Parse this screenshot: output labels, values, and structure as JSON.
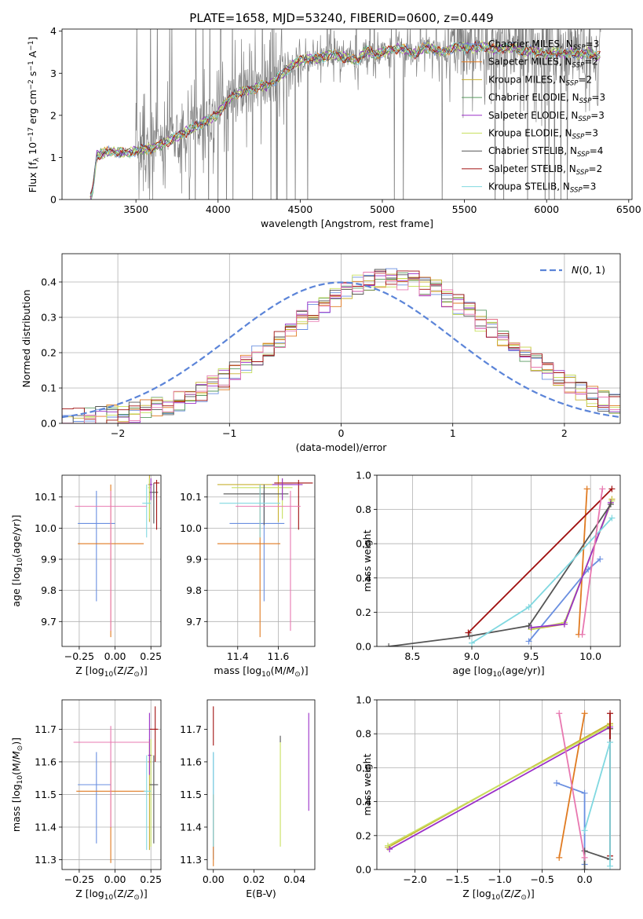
{
  "figure_title": "PLATE=1658, MJD=53240, FIBERID=0600, z=0.449",
  "series_names": [
    "Chabrier MILES, N_SSP=3",
    "Salpeter MILES, N_SSP=2",
    "Kroupa MILES, N_SSP=2",
    "Chabrier ELODIE, N_SSP=3",
    "Salpeter ELODIE, N_SSP=3",
    "Kroupa ELODIE, N_SSP=3",
    "Chabrier STELIB, N_SSP=4",
    "Salpeter STELIB, N_SSP=2",
    "Kroupa STELIB, N_SSP=3"
  ],
  "series_colors": [
    "#6a8fe0",
    "#e07a20",
    "#c8b030",
    "#5a9a60",
    "#9b30c8",
    "#c8e060",
    "#555555",
    "#a01010",
    "#80d8e0"
  ],
  "aux_colors": {
    "data": "#808080",
    "normal": "#5b84d8",
    "pink": "#e878b0"
  },
  "chart_data": [
    {
      "type": "line",
      "id": "spectrum",
      "xlabel": "wavelength [Angstrom, rest frame]",
      "ylabel": "Flux [f_λ 10^-17 erg cm^-2 s^-1 A^-1]",
      "xlim": [
        3050,
        6520
      ],
      "ylim": [
        0,
        4.05
      ],
      "xticks": [
        3500,
        4000,
        4500,
        5000,
        5500,
        6000,
        6500
      ],
      "yticks": [
        0,
        1,
        2,
        3,
        4
      ],
      "legend": "top-right",
      "grid": false,
      "continuum_x": [
        3220,
        3240,
        3260,
        3300,
        3350,
        3400,
        3450,
        3500,
        3550,
        3600,
        3650,
        3700,
        3750,
        3800,
        3850,
        3900,
        3950,
        4000,
        4050,
        4100,
        4150,
        4200,
        4250,
        4300,
        4350,
        4400,
        4450,
        4500,
        4550,
        4600,
        4650,
        4700,
        4750,
        4800,
        4850,
        4900,
        4950,
        5000,
        5050,
        5100,
        5150,
        5200,
        5250,
        5300,
        5350,
        5400,
        5450,
        5500,
        5550,
        5600,
        5650,
        5700,
        5750,
        5800,
        5850,
        5900,
        5950,
        6000,
        6050,
        6100,
        6150,
        6200,
        6250,
        6300
      ],
      "continuum_y": [
        0.0,
        0.3,
        1.05,
        1.1,
        1.15,
        1.12,
        1.1,
        1.15,
        1.2,
        1.22,
        1.3,
        1.4,
        1.5,
        1.6,
        1.7,
        1.8,
        1.9,
        2.05,
        2.3,
        2.5,
        2.55,
        2.6,
        2.7,
        2.7,
        2.85,
        3.0,
        3.2,
        3.3,
        3.35,
        3.35,
        3.4,
        3.45,
        3.4,
        3.35,
        3.3,
        3.55,
        3.45,
        3.5,
        3.55,
        3.6,
        3.55,
        3.45,
        3.6,
        3.6,
        3.5,
        3.55,
        3.65,
        3.6,
        3.6,
        3.65,
        3.6,
        3.55,
        3.6,
        3.6,
        3.5,
        3.55,
        3.5,
        3.45,
        3.5,
        3.45,
        3.5,
        3.45,
        3.5,
        3.4
      ]
    },
    {
      "type": "bar",
      "id": "residuals",
      "xlabel": "(data-model)/error",
      "ylabel": "Normed distribution",
      "xlim": [
        -2.5,
        2.5
      ],
      "ylim": [
        0,
        0.48
      ],
      "xticks": [
        -2,
        -1,
        0,
        1,
        2
      ],
      "yticks": [
        0.0,
        0.1,
        0.2,
        0.3,
        0.4
      ],
      "grid": true,
      "legend": "top-right",
      "normal_label": "N(0,1)",
      "bin_width": 0.1,
      "bin_start": -2.5
    },
    {
      "type": "scatter",
      "id": "age_vs_Z",
      "xlabel": "Z [log10(Z/Z⊙)]",
      "ylabel": "age  [log10(age/yr)]",
      "xlim": [
        -0.37,
        0.32
      ],
      "ylim": [
        9.62,
        10.17
      ],
      "xticks": [
        -0.25,
        0.0,
        0.25
      ],
      "yticks": [
        9.7,
        9.8,
        9.9,
        10.0,
        10.1
      ],
      "grid": true,
      "points": [
        {
          "x": -0.13,
          "y": 10.015,
          "xerr": [
            0.13,
            0.13
          ],
          "yerr": [
            0.25,
            0.105
          ],
          "color": 0
        },
        {
          "x": -0.03,
          "y": 9.95,
          "xerr": [
            0.23,
            0.23
          ],
          "yerr": [
            0.3,
            0.19
          ],
          "color": 1
        },
        {
          "x": 0.24,
          "y": 10.14,
          "xerr": [
            0.01,
            0.01
          ],
          "yerr": [
            0.12,
            0.03
          ],
          "color": 2
        },
        {
          "x": 0.24,
          "y": 10.13,
          "xerr": [
            0.01,
            0.01
          ],
          "yerr": [
            0.1,
            0.03
          ],
          "color": 5
        },
        {
          "x": 0.27,
          "y": 10.115,
          "xerr": [
            0.03,
            0.03
          ],
          "yerr": [
            0.1,
            0.03
          ],
          "color": 6
        },
        {
          "x": 0.29,
          "y": 10.145,
          "xerr": [
            0.02,
            0.02
          ],
          "yerr": [
            0.15,
            0.01
          ],
          "color": 7
        },
        {
          "x": 0.25,
          "y": 10.14,
          "xerr": [
            0.01,
            0.01
          ],
          "yerr": [
            0.05,
            0.02
          ],
          "color": 4
        },
        {
          "x": 0.22,
          "y": 10.08,
          "xerr": [
            0.03,
            0.03
          ],
          "yerr": [
            0.11,
            0.06
          ],
          "color": 8
        },
        {
          "x": -0.03,
          "y": 10.07,
          "xerr": [
            0.25,
            0.25
          ],
          "yerr": [
            0.4,
            0.05
          ],
          "color": "pink"
        }
      ]
    },
    {
      "type": "scatter",
      "id": "age_vs_mass",
      "xlabel": "mass [log10(M/M⊙)]",
      "ylabel": "",
      "xlim": [
        11.25,
        11.78
      ],
      "ylim": [
        9.62,
        10.17
      ],
      "xticks": [
        11.4,
        11.6
      ],
      "yticks": [
        9.7,
        9.8,
        9.9,
        10.0,
        10.1
      ],
      "grid": true,
      "points": [
        {
          "x": 11.53,
          "y": 10.015,
          "xerr": [
            0.17,
            0.1
          ],
          "yerr": [
            0.25,
            0.105
          ],
          "color": 0
        },
        {
          "x": 11.51,
          "y": 9.95,
          "xerr": [
            0.21,
            0.1
          ],
          "yerr": [
            0.3,
            0.19
          ],
          "color": 1
        },
        {
          "x": 11.6,
          "y": 10.14,
          "xerr": [
            0.3,
            0.07
          ],
          "yerr": [
            0.12,
            0.03
          ],
          "color": 2
        },
        {
          "x": 11.62,
          "y": 10.13,
          "xerr": [
            0.25,
            0.05
          ],
          "yerr": [
            0.1,
            0.03
          ],
          "color": 5
        },
        {
          "x": 11.53,
          "y": 10.11,
          "xerr": [
            0.2,
            0.12
          ],
          "yerr": [
            0.1,
            0.03
          ],
          "color": 6
        },
        {
          "x": 11.7,
          "y": 10.145,
          "xerr": [
            0.12,
            0.07
          ],
          "yerr": [
            0.15,
            0.01
          ],
          "color": 7
        },
        {
          "x": 11.62,
          "y": 10.14,
          "xerr": [
            0.05,
            0.1
          ],
          "yerr": [
            0.05,
            0.02
          ],
          "color": 4
        },
        {
          "x": 11.51,
          "y": 10.08,
          "xerr": [
            0.2,
            0.1
          ],
          "yerr": [
            0.11,
            0.06
          ],
          "color": 8
        },
        {
          "x": 11.66,
          "y": 10.07,
          "xerr": [
            0.27,
            0.05
          ],
          "yerr": [
            0.4,
            0.05
          ],
          "color": "pink"
        }
      ]
    },
    {
      "type": "line",
      "id": "massweight_vs_age",
      "xlabel": "age  [log10(age/yr)]",
      "ylabel": "mass weight",
      "xlim": [
        8.2,
        10.25
      ],
      "ylim": [
        0,
        1.0
      ],
      "xticks": [
        8.5,
        9.0,
        9.5,
        10.0
      ],
      "yticks": [
        0.0,
        0.2,
        0.4,
        0.6,
        0.8,
        1.0
      ],
      "grid": true,
      "series": [
        {
          "color": 0,
          "x": [
            9.48,
            9.98,
            10.08
          ],
          "y": [
            0.03,
            0.45,
            0.51
          ]
        },
        {
          "color": 1,
          "x": [
            9.9,
            9.97
          ],
          "y": [
            0.07,
            0.92
          ]
        },
        {
          "color": 2,
          "x": [
            9.5,
            9.78,
            10.18
          ],
          "y": [
            0.1,
            0.13,
            0.86
          ]
        },
        {
          "color": 5,
          "x": [
            9.5,
            9.78,
            10.18
          ],
          "y": [
            0.1,
            0.14,
            0.85
          ]
        },
        {
          "color": 4,
          "x": [
            9.5,
            9.78,
            10.17
          ],
          "y": [
            0.11,
            0.13,
            0.84
          ]
        },
        {
          "color": 6,
          "x": [
            8.3,
            8.98,
            9.48,
            10.17
          ],
          "y": [
            0.0,
            0.06,
            0.12,
            0.83
          ]
        },
        {
          "color": 7,
          "x": [
            8.97,
            10.18
          ],
          "y": [
            0.08,
            0.92
          ]
        },
        {
          "color": 8,
          "x": [
            9.0,
            9.48,
            10.18
          ],
          "y": [
            0.02,
            0.23,
            0.75
          ]
        },
        {
          "color": "pink",
          "x": [
            9.93,
            10.1
          ],
          "y": [
            0.07,
            0.92
          ]
        }
      ]
    },
    {
      "type": "scatter",
      "id": "mass_vs_Z",
      "xlabel": "Z [log10(Z/Z⊙)]",
      "ylabel": "mass [log10(M/M⊙)]",
      "xlim": [
        -0.37,
        0.32
      ],
      "ylim": [
        11.27,
        11.79
      ],
      "xticks": [
        -0.25,
        0.0,
        0.25
      ],
      "yticks": [
        11.3,
        11.4,
        11.5,
        11.6,
        11.7
      ],
      "grid": true,
      "points": [
        {
          "x": -0.13,
          "y": 11.53,
          "xerr": [
            0.13,
            0.1
          ],
          "yerr": [
            0.18,
            0.1
          ],
          "color": 0
        },
        {
          "x": -0.03,
          "y": 11.51,
          "xerr": [
            0.24,
            0.24
          ],
          "yerr": [
            0.22,
            0.09
          ],
          "color": 1
        },
        {
          "x": 0.24,
          "y": 11.6,
          "xerr": [
            0.01,
            0.01
          ],
          "yerr": [
            0.27,
            0.07
          ],
          "color": 2
        },
        {
          "x": 0.25,
          "y": 11.62,
          "xerr": [
            0.01,
            0.01
          ],
          "yerr": [
            0.28,
            0.05
          ],
          "color": 5
        },
        {
          "x": 0.27,
          "y": 11.53,
          "xerr": [
            0.03,
            0.03
          ],
          "yerr": [
            0.18,
            0.09
          ],
          "color": 6
        },
        {
          "x": 0.28,
          "y": 11.7,
          "xerr": [
            0.04,
            0.02
          ],
          "yerr": [
            0.1,
            0.07
          ],
          "color": 7
        },
        {
          "x": 0.24,
          "y": 11.62,
          "xerr": [
            0.01,
            0.01
          ],
          "yerr": [
            0.06,
            0.13
          ],
          "color": 4
        },
        {
          "x": 0.22,
          "y": 11.51,
          "xerr": [
            0.02,
            0.03
          ],
          "yerr": [
            0.18,
            0.11
          ],
          "color": 8
        },
        {
          "x": -0.03,
          "y": 11.66,
          "xerr": [
            0.26,
            0.27
          ],
          "yerr": [
            0.26,
            0.05
          ],
          "color": "pink"
        }
      ]
    },
    {
      "type": "scatter",
      "id": "mass_vs_EBV",
      "xlabel": "E(B-V)",
      "ylabel": "",
      "xlim": [
        -0.003,
        0.05
      ],
      "ylim": [
        11.27,
        11.79
      ],
      "xticks": [
        0.0,
        0.02,
        0.04
      ],
      "yticks": [
        11.3,
        11.4,
        11.5,
        11.6,
        11.7
      ],
      "grid": false,
      "points": [
        {
          "x": 0.0,
          "y": 11.53,
          "yerr": [
            0.23,
            0.1
          ],
          "color": 0
        },
        {
          "x": 0.0,
          "y": 11.4,
          "yerr": [
            0.12,
            0.1
          ],
          "color": 1
        },
        {
          "x": 0.0,
          "y": 11.7,
          "yerr": [
            0.05,
            0.07
          ],
          "color": 7
        },
        {
          "x": 0.0,
          "y": 11.48,
          "yerr": [
            0.14,
            0.15
          ],
          "color": 8
        },
        {
          "x": 0.033,
          "y": 11.5,
          "yerr": [
            0.16,
            0.16
          ],
          "color": 5
        },
        {
          "x": 0.033,
          "y": 11.66,
          "yerr": [
            0.0,
            0.02
          ],
          "color": 6
        },
        {
          "x": 0.047,
          "y": 11.6,
          "yerr": [
            0.15,
            0.15
          ],
          "color": 4
        }
      ]
    },
    {
      "type": "line",
      "id": "massweight_vs_Z",
      "xlabel": "Z [log10(Z/Z⊙)]",
      "ylabel": "mass weight",
      "xlim": [
        -2.45,
        0.42
      ],
      "ylim": [
        0,
        1.0
      ],
      "xticks": [
        -2.0,
        -1.5,
        -1.0,
        -0.5,
        0.0
      ],
      "yticks": [
        0.0,
        0.2,
        0.4,
        0.6,
        0.8,
        1.0
      ],
      "grid": true,
      "series": [
        {
          "color": 0,
          "x": [
            -0.33,
            0.0,
            0.0
          ],
          "y": [
            0.51,
            0.45,
            0.03
          ]
        },
        {
          "color": 1,
          "x": [
            -0.3,
            0.0
          ],
          "y": [
            0.07,
            0.92
          ]
        },
        {
          "color": 2,
          "x": [
            -2.32,
            0.3
          ],
          "y": [
            0.13,
            0.86
          ]
        },
        {
          "color": 5,
          "x": [
            -2.32,
            0.3
          ],
          "y": [
            0.14,
            0.85
          ]
        },
        {
          "color": 4,
          "x": [
            -2.3,
            0.3
          ],
          "y": [
            0.12,
            0.84
          ]
        },
        {
          "color": 6,
          "x": [
            0.0,
            0.0,
            0.3,
            0.3
          ],
          "y": [
            0.0,
            0.11,
            0.06,
            0.83
          ]
        },
        {
          "color": 7,
          "x": [
            0.3,
            0.3
          ],
          "y": [
            0.08,
            0.92
          ]
        },
        {
          "color": 8,
          "x": [
            0.0,
            0.3,
            0.3
          ],
          "y": [
            0.23,
            0.75,
            0.02
          ]
        },
        {
          "color": "pink",
          "x": [
            -0.3,
            0.0
          ],
          "y": [
            0.92,
            0.07
          ]
        }
      ]
    }
  ]
}
